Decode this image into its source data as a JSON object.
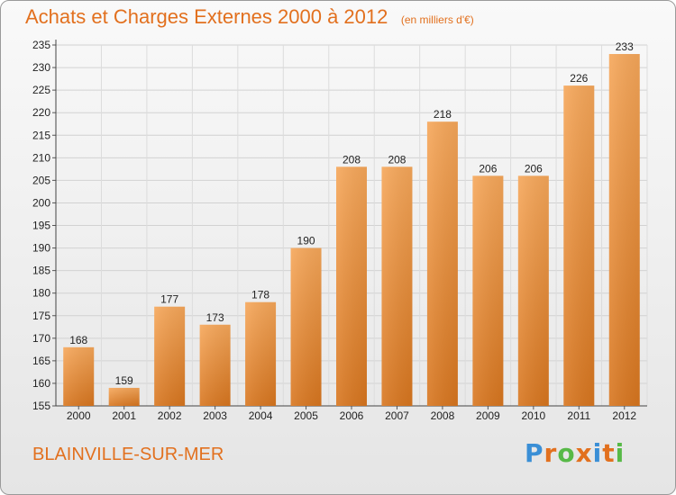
{
  "page": {
    "title": "Achats et Charges Externes 2000 à 2012",
    "subtitle": "(en milliers d'€)",
    "city": "BLAINVILLE-SUR-MER",
    "logo": [
      "P",
      "r",
      "o",
      "x",
      "i",
      "t",
      "i"
    ],
    "logo_colors": [
      "#3a8fd6",
      "#e2701e",
      "#57b947",
      "#e2701e",
      "#3a8fd6",
      "#e2701e",
      "#57b947"
    ]
  },
  "colors": {
    "accent": "#e2701e",
    "bar_light": "#f6a75a",
    "bar_dark": "#d8761f"
  },
  "chart_data": {
    "type": "bar",
    "title": "Achats et Charges Externes 2000 à 2012",
    "subtitle": "(en milliers d'€)",
    "categories": [
      "2000",
      "2001",
      "2002",
      "2003",
      "2004",
      "2005",
      "2006",
      "2007",
      "2008",
      "2009",
      "2010",
      "2011",
      "2012"
    ],
    "values": [
      168,
      159,
      177,
      173,
      178,
      190,
      208,
      208,
      218,
      206,
      206,
      226,
      233
    ],
    "ylim": [
      155,
      235
    ],
    "yticks": [
      155,
      160,
      165,
      170,
      175,
      180,
      185,
      190,
      195,
      200,
      205,
      210,
      215,
      220,
      225,
      230,
      235
    ],
    "grid": true
  }
}
